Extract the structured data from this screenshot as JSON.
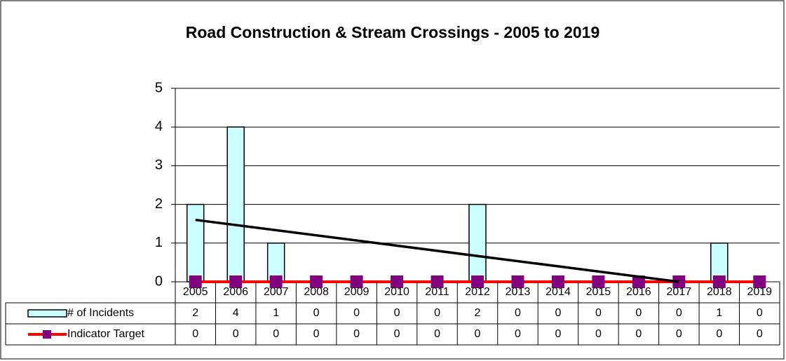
{
  "chart_data": {
    "type": "bar",
    "title": "Road Construction & Stream Crossings - 2005 to 2019",
    "categories": [
      "2005",
      "2006",
      "2007",
      "2008",
      "2009",
      "2010",
      "2011",
      "2012",
      "2013",
      "2014",
      "2015",
      "2016",
      "2017",
      "2018",
      "2019"
    ],
    "series": [
      {
        "name": "# of Incidents",
        "type": "bar",
        "color": "#ccffff",
        "values": [
          2,
          4,
          1,
          0,
          0,
          0,
          0,
          2,
          0,
          0,
          0,
          0,
          0,
          1,
          0
        ]
      },
      {
        "name": "Indicator Target",
        "type": "line",
        "color": "#ff0000",
        "marker_color": "#800080",
        "values": [
          0,
          0,
          0,
          0,
          0,
          0,
          0,
          0,
          0,
          0,
          0,
          0,
          0,
          0,
          0
        ]
      }
    ],
    "trendline": {
      "color": "#000000",
      "from": "2005",
      "to": "2017",
      "values": [
        1.6,
        0
      ]
    },
    "ylim": [
      0,
      5
    ],
    "yticks": [
      0,
      1,
      2,
      3,
      4,
      5
    ],
    "grid": true,
    "data_table": true
  }
}
